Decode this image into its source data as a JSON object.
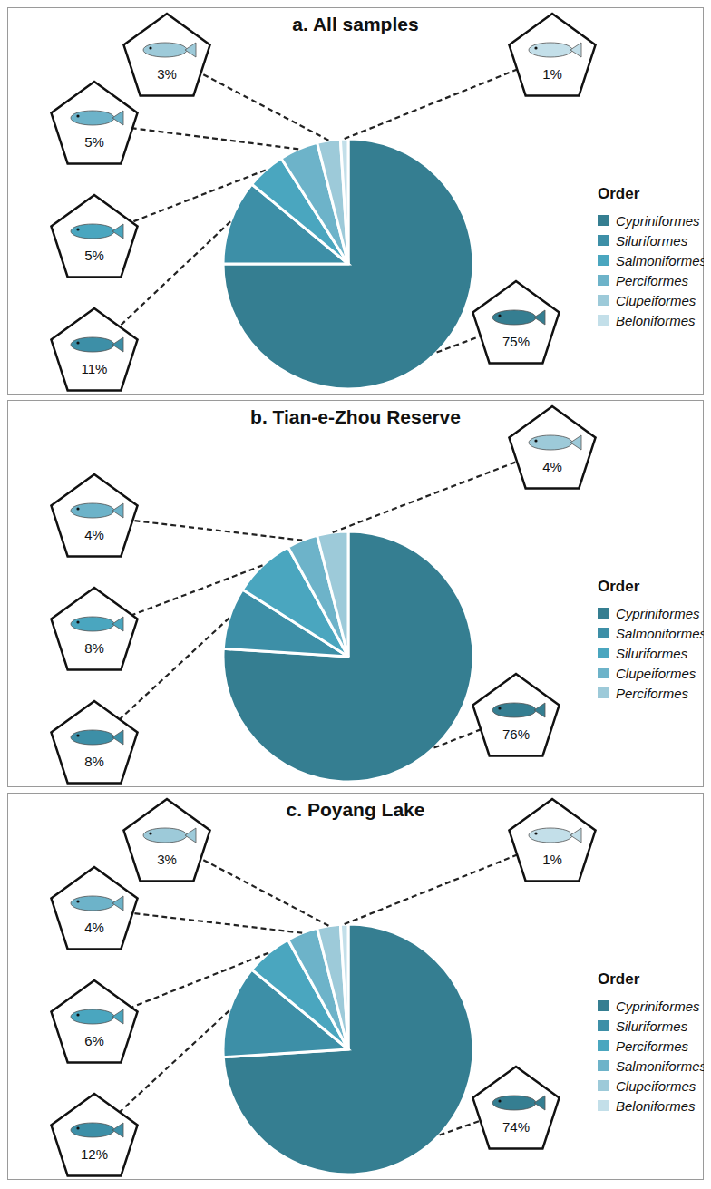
{
  "chart_data": [
    {
      "type": "pie",
      "title": "a. All samples",
      "legend_title": "Order",
      "legend": "right",
      "data_labels": true,
      "categories": [
        "Cypriniformes",
        "Siluriformes",
        "Salmoniformes",
        "Perciformes",
        "Clupeiformes",
        "Beloniformes"
      ],
      "values": [
        75,
        11,
        5,
        5,
        3,
        1
      ],
      "value_labels": [
        "75%",
        "11%",
        "5%",
        "5%",
        "3%",
        "1%"
      ],
      "colors": [
        "#357e91",
        "#3d8fa7",
        "#4aa6bf",
        "#6db3c9",
        "#9dcad9",
        "#c3dfe9"
      ]
    },
    {
      "type": "pie",
      "title": "b. Tian-e-Zhou Reserve",
      "legend_title": "Order",
      "legend": "right",
      "data_labels": true,
      "categories": [
        "Cypriniformes",
        "Salmoniformes",
        "Siluriformes",
        "Clupeiformes",
        "Perciformes"
      ],
      "values": [
        76,
        8,
        8,
        4,
        4
      ],
      "value_labels": [
        "76%",
        "8%",
        "8%",
        "4%",
        "4%"
      ],
      "colors": [
        "#357e91",
        "#3d8fa7",
        "#4aa6bf",
        "#6db3c9",
        "#9dcad9"
      ]
    },
    {
      "type": "pie",
      "title": "c. Poyang Lake",
      "legend_title": "Order",
      "legend": "right",
      "data_labels": true,
      "categories": [
        "Cypriniformes",
        "Siluriformes",
        "Perciformes",
        "Salmoniformes",
        "Clupeiformes",
        "Beloniformes"
      ],
      "values": [
        74,
        12,
        6,
        4,
        3,
        1
      ],
      "value_labels": [
        "74%",
        "12%",
        "6%",
        "4%",
        "3%",
        "1%"
      ],
      "colors": [
        "#357e91",
        "#3d8fa7",
        "#4aa6bf",
        "#6db3c9",
        "#9dcad9",
        "#c3dfe9"
      ]
    }
  ]
}
